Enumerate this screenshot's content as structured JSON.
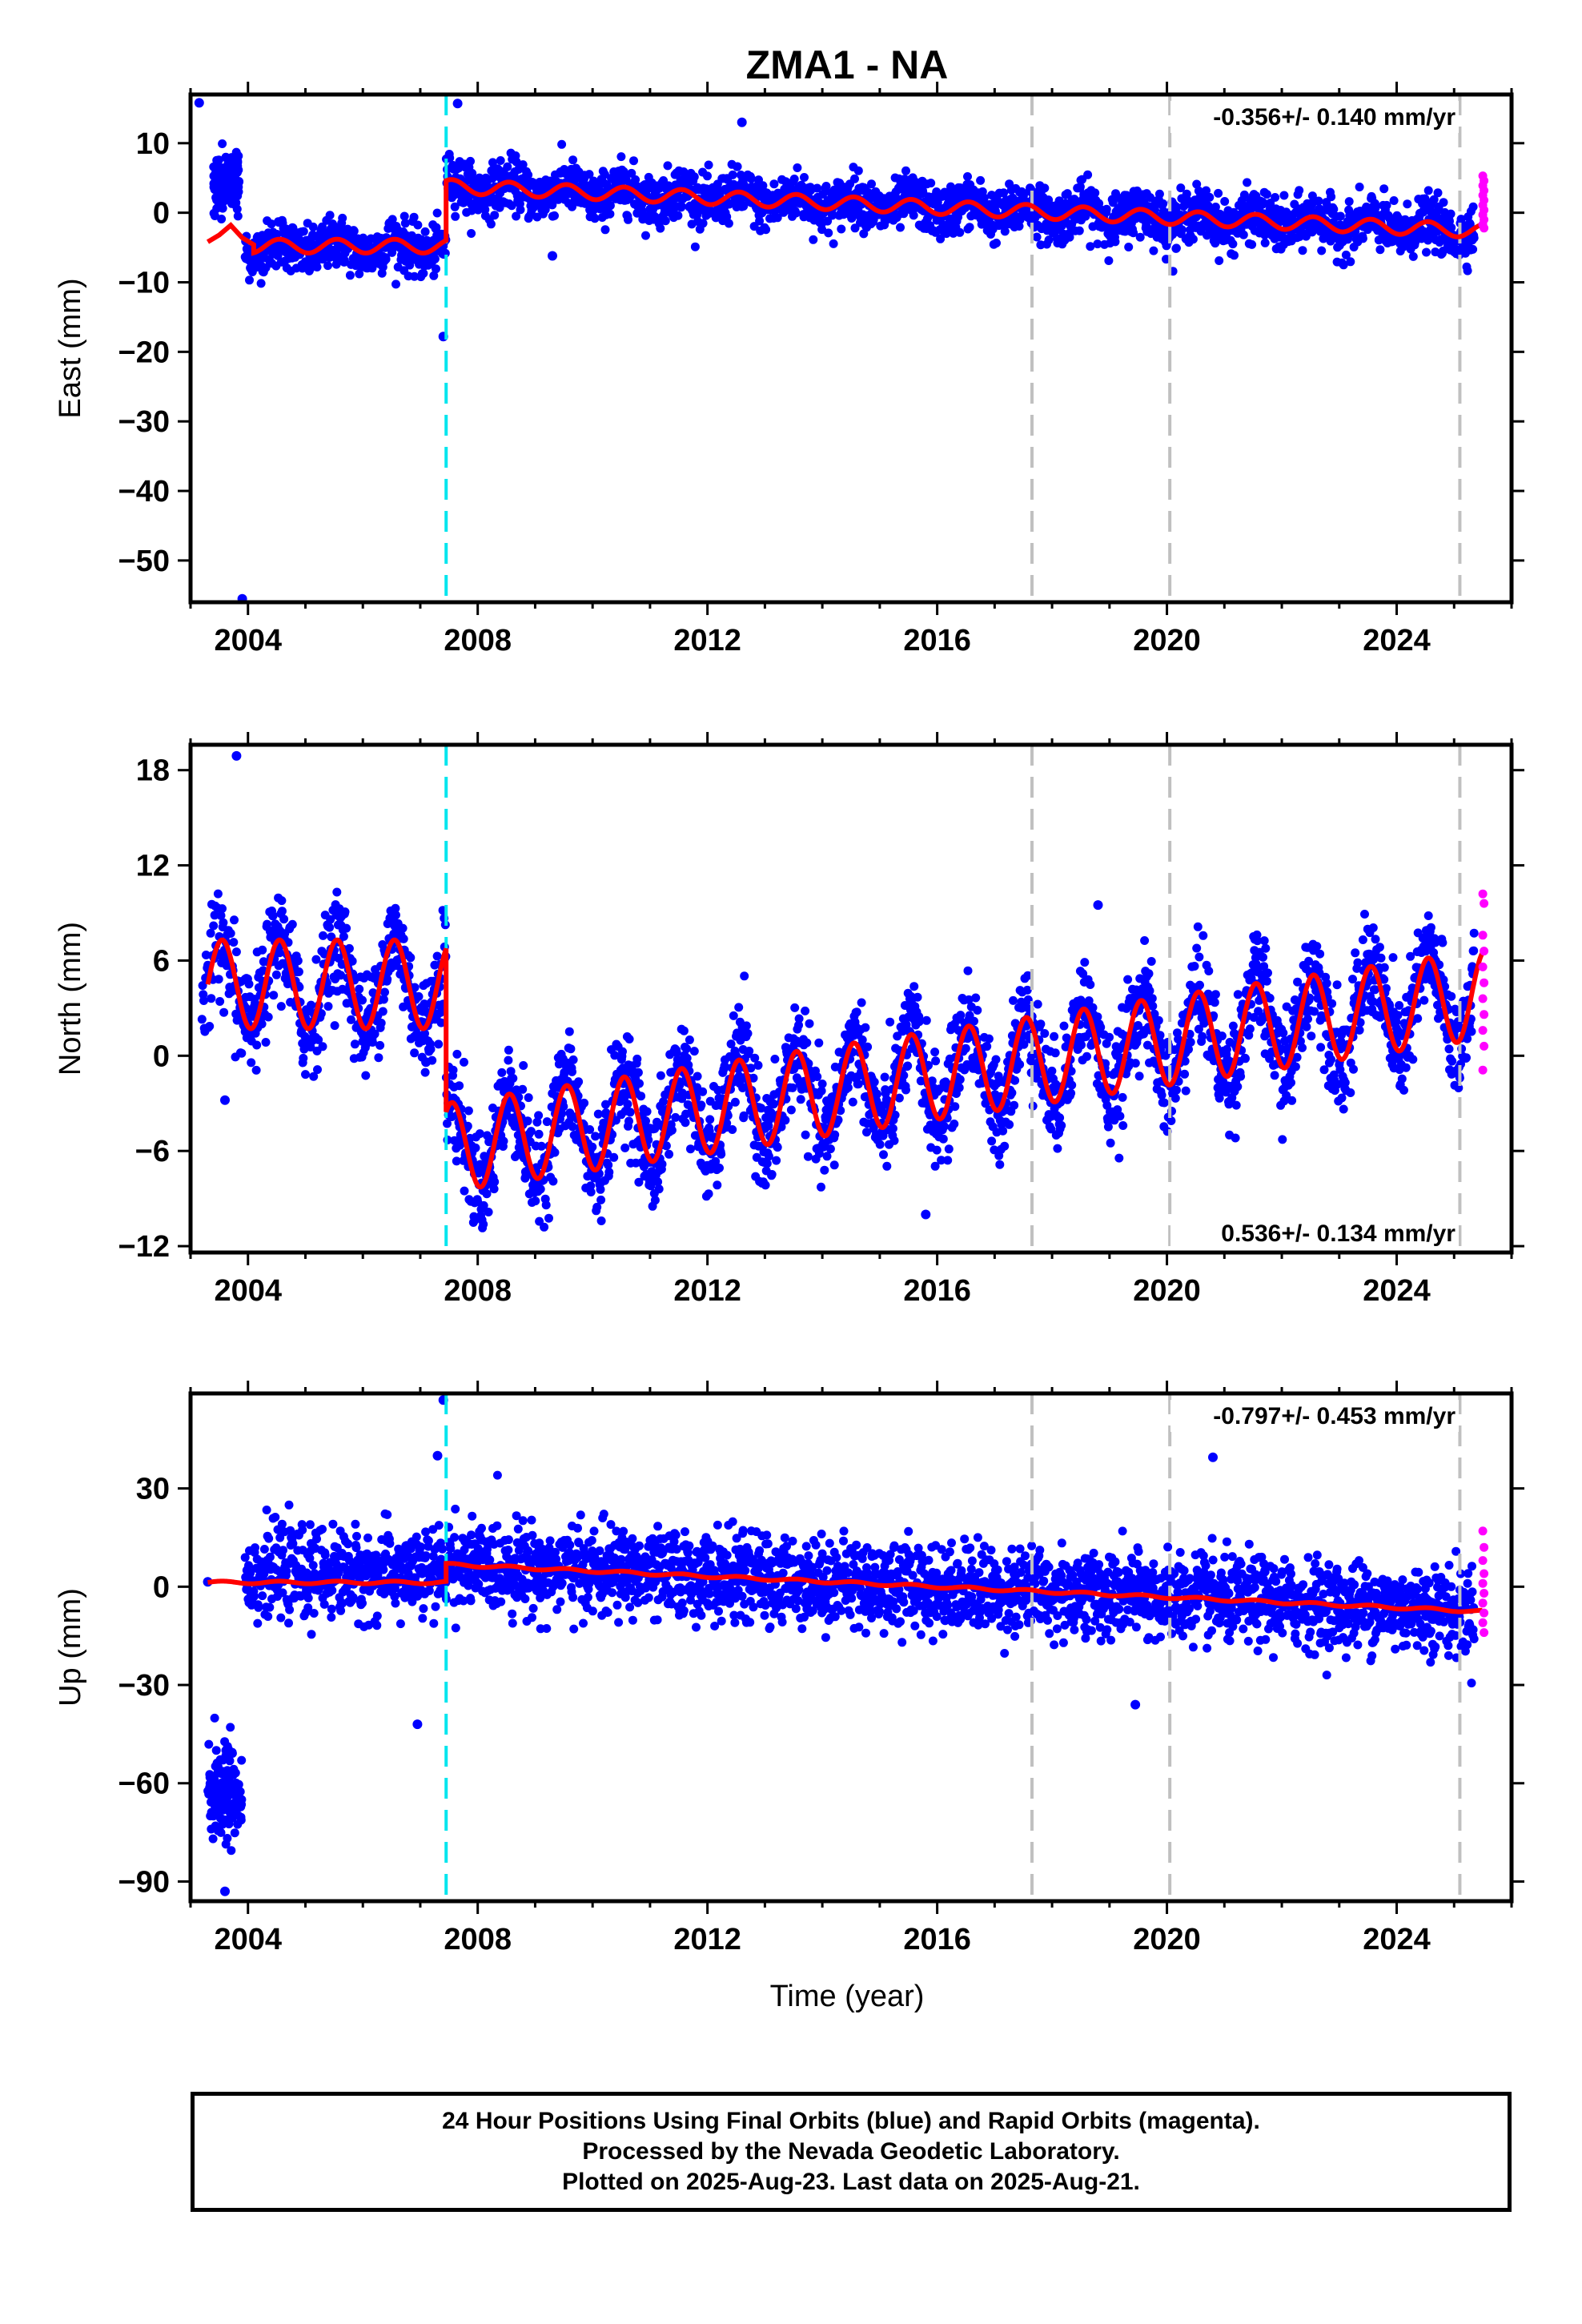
{
  "chart_data": {
    "type": "scatter",
    "title": "ZMA1 - NA",
    "xlabel": "Time (year)",
    "x_ticks": [
      "2004",
      "2008",
      "2012",
      "2016",
      "2020",
      "2024"
    ],
    "xlim": [
      2003.0,
      2026.0
    ],
    "equipment_change_epoch": 2007.45,
    "other_event_epochs": [
      2017.65,
      2020.05,
      2025.1
    ],
    "colors": {
      "final_orbits": "#0000ff",
      "rapid_orbits": "#ff00ff",
      "model": "#ff0000",
      "equipment_change": "#00e5ee",
      "other_events": "#c0c0c0"
    },
    "panels": [
      {
        "name": "east",
        "ylabel": "East (mm)",
        "ylim": [
          -56,
          17
        ],
        "yticks": [
          10,
          0,
          -10,
          -20,
          -30,
          -40,
          -50
        ],
        "ytick_labels": [
          "10",
          "0",
          "−10",
          "−20",
          "−30",
          "−40",
          "−50"
        ],
        "rate_text": "-0.356+/- 0.140 mm/yr",
        "rate_position": "top-right",
        "model": {
          "pre_offset_level": -4.8,
          "post_offset_level": 3.8,
          "rate_mm_per_yr": -0.356,
          "annual_amplitude": 1.0,
          "early_segment": [
            [
              2003.3,
              -4.2
            ],
            [
              2003.5,
              -3.2
            ],
            [
              2003.7,
              -1.8
            ],
            [
              2003.9,
              -3.6
            ],
            [
              2004.1,
              -4.6
            ]
          ]
        },
        "scatter": {
          "pre_offset_mean": -5.0,
          "noise": 1.8
        },
        "outliers": [
          [
            2003.15,
            15.8
          ],
          [
            2003.9,
            -55.5
          ],
          [
            2007.4,
            -17.8
          ],
          [
            2007.65,
            15.7
          ],
          [
            2012.6,
            13.0
          ],
          [
            2009.3,
            -6.2
          ]
        ],
        "clusters": [
          [
            2003.4,
            2003.85,
            4.2,
            2.0
          ]
        ],
        "rapid_values": [
          5.3,
          4.6,
          3.9,
          3.2,
          2.5,
          1.8,
          1.1,
          0.4,
          -0.3,
          -1.0,
          -1.7,
          -2.2
        ]
      },
      {
        "name": "north",
        "ylabel": "North (mm)",
        "ylim": [
          -12.4,
          19.6
        ],
        "yticks": [
          18,
          12,
          6,
          0,
          -6,
          -12
        ],
        "ytick_labels": [
          "18",
          "12",
          "6",
          "0",
          "−6",
          "−12"
        ],
        "rate_text": "0.536+/- 0.134 mm/yr",
        "rate_position": "bottom-right",
        "model": {
          "pre_offset_level": 4.5,
          "post_offset_level": -5.8,
          "rate_mm_per_yr": 0.536,
          "annual_amplitude": 2.8,
          "early_segment": []
        },
        "scatter": {
          "pre_offset_mean": 4.5,
          "noise": 1.6
        },
        "outliers": [
          [
            2003.8,
            18.9
          ],
          [
            2015.8,
            -10.0
          ],
          [
            2018.8,
            9.5
          ],
          [
            2003.6,
            -2.8
          ],
          [
            2007.1,
            -0.4
          ]
        ],
        "clusters": [],
        "rapid_values": [
          10.2,
          9.6,
          7.6,
          6.6,
          5.6,
          4.6,
          3.6,
          2.6,
          1.6,
          0.6,
          -0.9
        ]
      },
      {
        "name": "up",
        "ylabel": "Up (mm)",
        "ylim": [
          -96,
          59
        ],
        "yticks": [
          30,
          0,
          -30,
          -60,
          -90
        ],
        "ytick_labels": [
          "30",
          "0",
          "−30",
          "−60",
          "−90"
        ],
        "rate_text": "-0.797+/- 0.453 mm/yr",
        "rate_position": "top-right",
        "model": {
          "pre_offset_level": 1.3,
          "post_offset_level": 6.8,
          "rate_mm_per_yr": -0.797,
          "annual_amplitude": 0.4,
          "early_segment": []
        },
        "scatter": {
          "pre_offset_mean": 4.0,
          "noise": 6.5
        },
        "outliers": [
          [
            2007.4,
            57.0
          ],
          [
            2007.3,
            40.0
          ],
          [
            2020.8,
            39.5
          ],
          [
            2019.45,
            -36.0
          ],
          [
            2006.95,
            -42.0
          ],
          [
            2003.6,
            -93.0
          ],
          [
            2003.3,
            1.5
          ]
        ],
        "clusters": [
          [
            2003.3,
            2003.9,
            -62.0,
            8.0
          ]
        ],
        "rapid_values": [
          17.0,
          12.0,
          8.0,
          4.0,
          1.0,
          -2.0,
          -5.0,
          -8.0,
          -11.0,
          -14.0
        ]
      }
    ]
  },
  "caption": {
    "line1": "24 Hour Positions Using Final Orbits (blue) and Rapid Orbits (magenta).",
    "line2": "Processed by the Nevada Geodetic Laboratory.",
    "line3": "Plotted on 2025-Aug-23. Last data on 2025-Aug-21."
  }
}
